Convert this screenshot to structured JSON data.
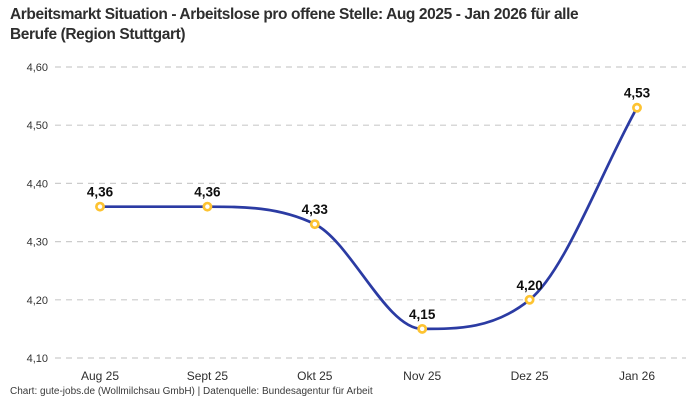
{
  "title": {
    "line1": "Arbeitsmarkt Situation - Arbeitslose pro offene Stelle: Aug 2025 - Jan 2026 für alle",
    "line2": "Berufe (Region Stuttgart)"
  },
  "footer": "Chart: gute-jobs.de (Wollmilchsau GmbH) | Datenquelle: Bundesagentur für Arbeit",
  "chart_data": {
    "type": "line",
    "title": "Arbeitsmarkt Situation - Arbeitslose pro offene Stelle: Aug 2025 - Jan 2026 für alle Berufe (Region Stuttgart)",
    "categories": [
      "Aug 25",
      "Sept 25",
      "Okt 25",
      "Nov 25",
      "Dez 25",
      "Jan 26"
    ],
    "values": [
      4.36,
      4.36,
      4.33,
      4.15,
      4.2,
      4.53
    ],
    "point_labels": [
      "4,36",
      "4,36",
      "4,33",
      "4,15",
      "4,20",
      "4,53"
    ],
    "y_ticks": [
      {
        "label": "4,60",
        "value": 4.6
      },
      {
        "label": "4,50",
        "value": 4.5
      },
      {
        "label": "4,40",
        "value": 4.4
      },
      {
        "label": "4,30",
        "value": 4.3
      },
      {
        "label": "4,20",
        "value": 4.2
      },
      {
        "label": "4,10",
        "value": 4.1
      }
    ],
    "ylim": [
      4.1,
      4.6
    ],
    "xlabel": "",
    "ylabel": "",
    "legend": "none",
    "grid": "horizontal-dashed",
    "colors": {
      "line": "#2b3ba3",
      "marker_ring": "#fdc331",
      "marker_fill": "#ffffff",
      "gridline": "#cccccc",
      "point_label": "#0e0e0e",
      "tick_label": "#333333"
    }
  }
}
